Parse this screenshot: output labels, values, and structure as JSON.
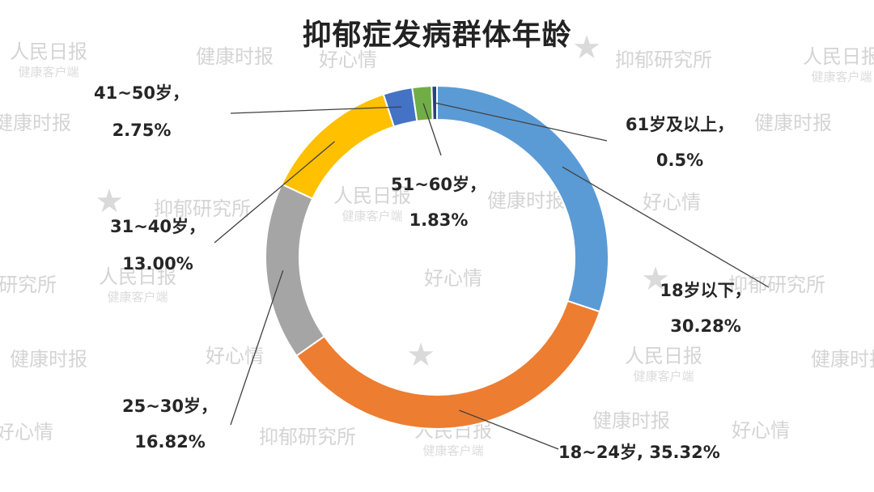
{
  "chart_data": {
    "type": "pie",
    "title": "抑郁症发病群体年龄",
    "series": [
      {
        "categories": [
          "18岁以下",
          "18~24岁",
          "25~30岁",
          "31~40岁",
          "41~50岁",
          "51~60岁",
          "61岁及以上"
        ],
        "values": [
          30.28,
          35.32,
          16.82,
          13.0,
          2.75,
          1.83,
          0.5
        ],
        "value_labels": [
          "30.28%",
          "35.32%",
          "16.82%",
          "13.00%",
          "2.75%",
          "1.83%",
          "0.5%"
        ]
      }
    ],
    "colors": [
      "#5b9bd5",
      "#ed7d31",
      "#a5a5a5",
      "#ffc000",
      "#4472c4",
      "#70ad47",
      "#264478"
    ],
    "legend": "none",
    "donut": true
  },
  "watermarks": {
    "haoxinqing": "好心情",
    "renmin": "人民日报",
    "renmin_sub": "健康客户端",
    "jiankang": "健康时报",
    "research": "抑郁研究所"
  }
}
